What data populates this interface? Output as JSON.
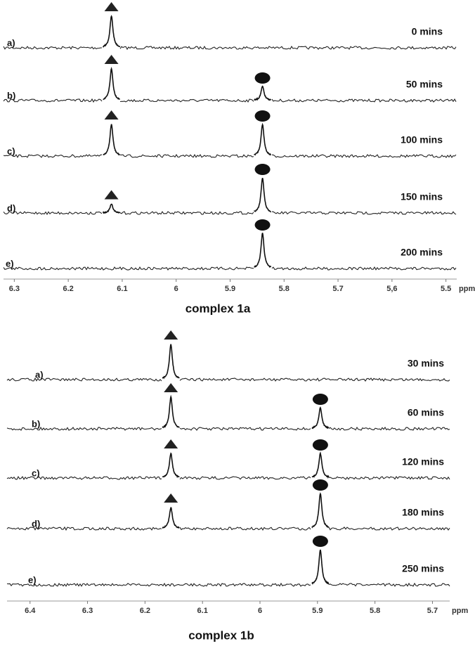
{
  "chart_data": [
    {
      "type": "spectrum",
      "title": "complex 1a",
      "xlabel": "ppm",
      "xlim": [
        6.32,
        5.48
      ],
      "xticks": [
        6.3,
        6.2,
        6.1,
        6.0,
        5.9,
        5.8,
        5.7,
        {
          "value": 5.6,
          "label": "5,6"
        },
        5.5
      ],
      "traces": [
        {
          "label": "a)",
          "time": "0 mins",
          "peaks": [
            {
              "ppm": 6.12,
              "intensity": 0.9,
              "marker": "triangle"
            }
          ]
        },
        {
          "label": "b)",
          "time": "50 mins",
          "peaks": [
            {
              "ppm": 6.12,
              "intensity": 0.9,
              "marker": "triangle"
            },
            {
              "ppm": 5.84,
              "intensity": 0.4,
              "marker": "circle"
            }
          ]
        },
        {
          "label": "c)",
          "time": "100 mins",
          "peaks": [
            {
              "ppm": 6.12,
              "intensity": 0.9,
              "marker": "triangle"
            },
            {
              "ppm": 5.84,
              "intensity": 0.9,
              "marker": "circle"
            }
          ]
        },
        {
          "label": "d)",
          "time": "150 mins",
          "peaks": [
            {
              "ppm": 6.12,
              "intensity": 0.25,
              "marker": "triangle"
            },
            {
              "ppm": 5.84,
              "intensity": 1.0,
              "marker": "circle"
            }
          ]
        },
        {
          "label": "e)",
          "time": "200 mins",
          "peaks": [
            {
              "ppm": 5.84,
              "intensity": 1.0,
              "marker": "circle"
            }
          ]
        }
      ]
    },
    {
      "type": "spectrum",
      "title": "complex 1b",
      "xlabel": "ppm",
      "xlim": [
        6.44,
        5.67
      ],
      "xticks": [
        6.4,
        6.3,
        6.2,
        6.1,
        6.0,
        5.9,
        5.8,
        5.7
      ],
      "traces": [
        {
          "label": "a)",
          "time": "30 mins",
          "peaks": [
            {
              "ppm": 6.155,
              "intensity": 1.0,
              "marker": "triangle"
            }
          ]
        },
        {
          "label": "b)",
          "time": "60 mins",
          "peaks": [
            {
              "ppm": 6.155,
              "intensity": 0.9,
              "marker": "triangle"
            },
            {
              "ppm": 5.895,
              "intensity": 0.6,
              "marker": "circle"
            }
          ]
        },
        {
          "label": "c)",
          "time": "120 mins",
          "peaks": [
            {
              "ppm": 6.155,
              "intensity": 0.7,
              "marker": "triangle"
            },
            {
              "ppm": 5.895,
              "intensity": 0.7,
              "marker": "circle"
            }
          ]
        },
        {
          "label": "d)",
          "time": "180 mins",
          "peaks": [
            {
              "ppm": 6.155,
              "intensity": 0.6,
              "marker": "triangle"
            },
            {
              "ppm": 5.895,
              "intensity": 1.0,
              "marker": "circle"
            }
          ]
        },
        {
          "label": "e)",
          "time": "250 mins",
          "peaks": [
            {
              "ppm": 5.895,
              "intensity": 1.0,
              "marker": "circle"
            }
          ]
        }
      ]
    }
  ]
}
